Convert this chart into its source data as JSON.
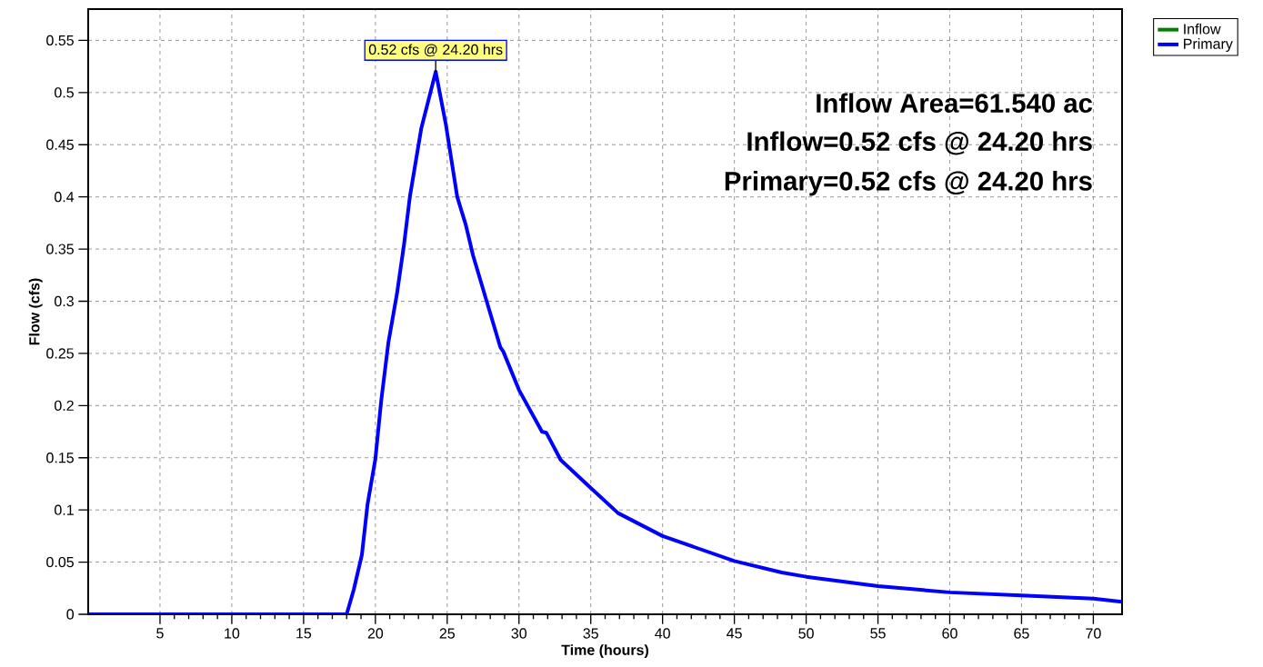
{
  "chart_data": {
    "type": "line",
    "xlabel": "Time  (hours)",
    "ylabel": "Flow  (cfs)",
    "x": [
      0,
      18.0,
      18.5,
      19.06,
      19.45,
      20.0,
      20.4,
      20.9,
      21.5,
      22.0,
      22.4,
      23.2,
      24.2,
      24.9,
      25.7,
      26.3,
      26.8,
      27.9,
      28.7,
      28.9,
      30.0,
      31.6,
      31.9,
      32.9,
      35.0,
      36.9,
      40.0,
      45.0,
      48.3,
      50.0,
      55.0,
      60.0,
      65.0,
      70.0,
      72.0
    ],
    "series": [
      {
        "name": "Inflow",
        "color": "#008000",
        "values": [
          null,
          null,
          null,
          null,
          null,
          null,
          null,
          null,
          null,
          null,
          null,
          null,
          null,
          null,
          null,
          null,
          null,
          null,
          null,
          null,
          null,
          null,
          null,
          null,
          null,
          null,
          null,
          null,
          null,
          null,
          null,
          null,
          null,
          null,
          null
        ]
      },
      {
        "name": "Primary",
        "color": "#0000ff",
        "values": [
          0,
          0,
          0.024,
          0.057,
          0.105,
          0.149,
          0.204,
          0.26,
          0.307,
          0.355,
          0.4,
          0.466,
          0.52,
          0.47,
          0.4,
          0.373,
          0.344,
          0.293,
          0.256,
          0.252,
          0.215,
          0.175,
          0.174,
          0.148,
          0.121,
          0.097,
          0.075,
          0.051,
          0.04,
          0.036,
          0.027,
          0.021,
          0.018,
          0.015,
          0.012
        ]
      }
    ],
    "xlim": [
      0,
      72
    ],
    "ylim": [
      0,
      0.58
    ],
    "xticks": [
      5,
      10,
      15,
      20,
      25,
      30,
      35,
      40,
      45,
      50,
      55,
      60,
      65,
      70
    ],
    "yticks": [
      0,
      0.05,
      0.1,
      0.15,
      0.2,
      0.25,
      0.3,
      0.35,
      0.4,
      0.45,
      0.5,
      0.55
    ],
    "grid": true,
    "legend": "top right",
    "marker": "none",
    "line_style": "solid",
    "annotations": [
      {
        "text": "0.52 cfs @ 24.20 hrs",
        "x": 24.2,
        "y": 0.52
      },
      "Inflow Area=61.540 ac",
      "Inflow=0.52 cfs @ 24.20 hrs",
      "Primary=0.52 cfs @ 24.20 hrs"
    ]
  }
}
